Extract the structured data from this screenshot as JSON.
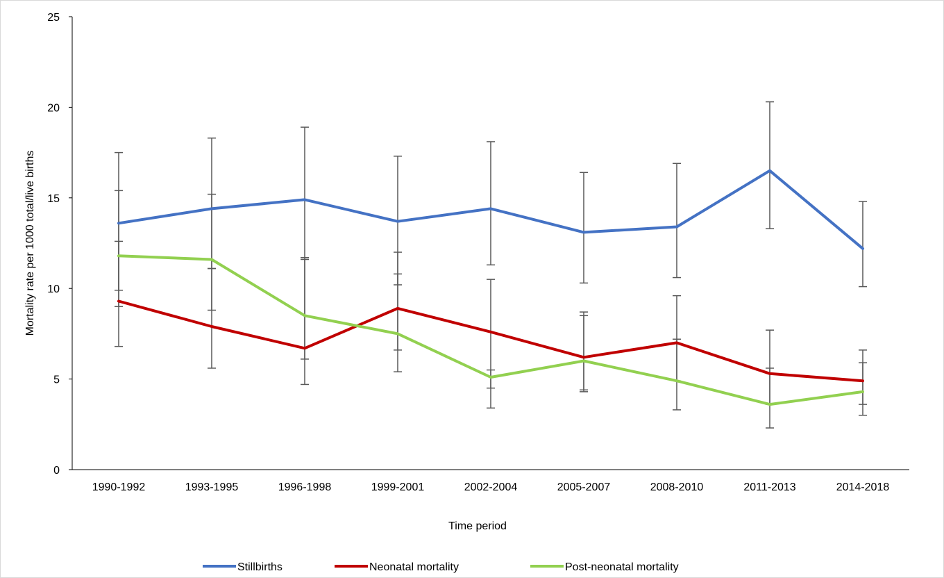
{
  "chart_data": {
    "type": "line",
    "title": "",
    "xlabel": "Time period",
    "ylabel": "Mortality rate per 1000 total/live births",
    "ylim": [
      0,
      25
    ],
    "yticks": [
      0,
      5,
      10,
      15,
      20,
      25
    ],
    "grid": false,
    "legend_position": "bottom",
    "categories": [
      "1990-1992",
      "1993-1995",
      "1996-1998",
      "1999-2001",
      "2002-2004",
      "2005-2007",
      "2008-2010",
      "2011-2013",
      "2014-2018"
    ],
    "series": [
      {
        "name": "Stillbirths",
        "color": "#4472c4",
        "values": [
          13.6,
          14.4,
          14.9,
          13.7,
          14.4,
          13.1,
          13.4,
          16.5,
          12.2
        ],
        "error_low": [
          9.9,
          11.1,
          11.7,
          10.2,
          11.3,
          10.3,
          10.6,
          13.3,
          10.1
        ],
        "error_high": [
          17.5,
          18.3,
          18.9,
          17.3,
          18.1,
          16.4,
          16.9,
          20.3,
          14.8
        ]
      },
      {
        "name": "Neonatal mortality",
        "color": "#c00000",
        "values": [
          9.3,
          7.9,
          6.7,
          8.9,
          7.6,
          6.2,
          7.0,
          5.3,
          4.9
        ],
        "error_low": [
          6.8,
          5.6,
          4.7,
          6.6,
          4.5,
          4.3,
          4.9,
          3.6,
          3.6
        ],
        "error_high": [
          12.6,
          11.1,
          11.7,
          12.0,
          10.5,
          8.7,
          9.6,
          7.7,
          6.6
        ]
      },
      {
        "name": "Post-neonatal mortality",
        "color": "#92d050",
        "values": [
          11.8,
          11.6,
          8.5,
          7.5,
          5.1,
          6.0,
          4.9,
          3.6,
          4.3
        ],
        "error_low": [
          9.0,
          8.8,
          6.1,
          5.4,
          3.4,
          4.4,
          3.3,
          2.3,
          3.0
        ],
        "error_high": [
          15.4,
          15.2,
          11.6,
          10.8,
          5.5,
          8.5,
          7.2,
          5.6,
          5.9
        ]
      }
    ]
  }
}
